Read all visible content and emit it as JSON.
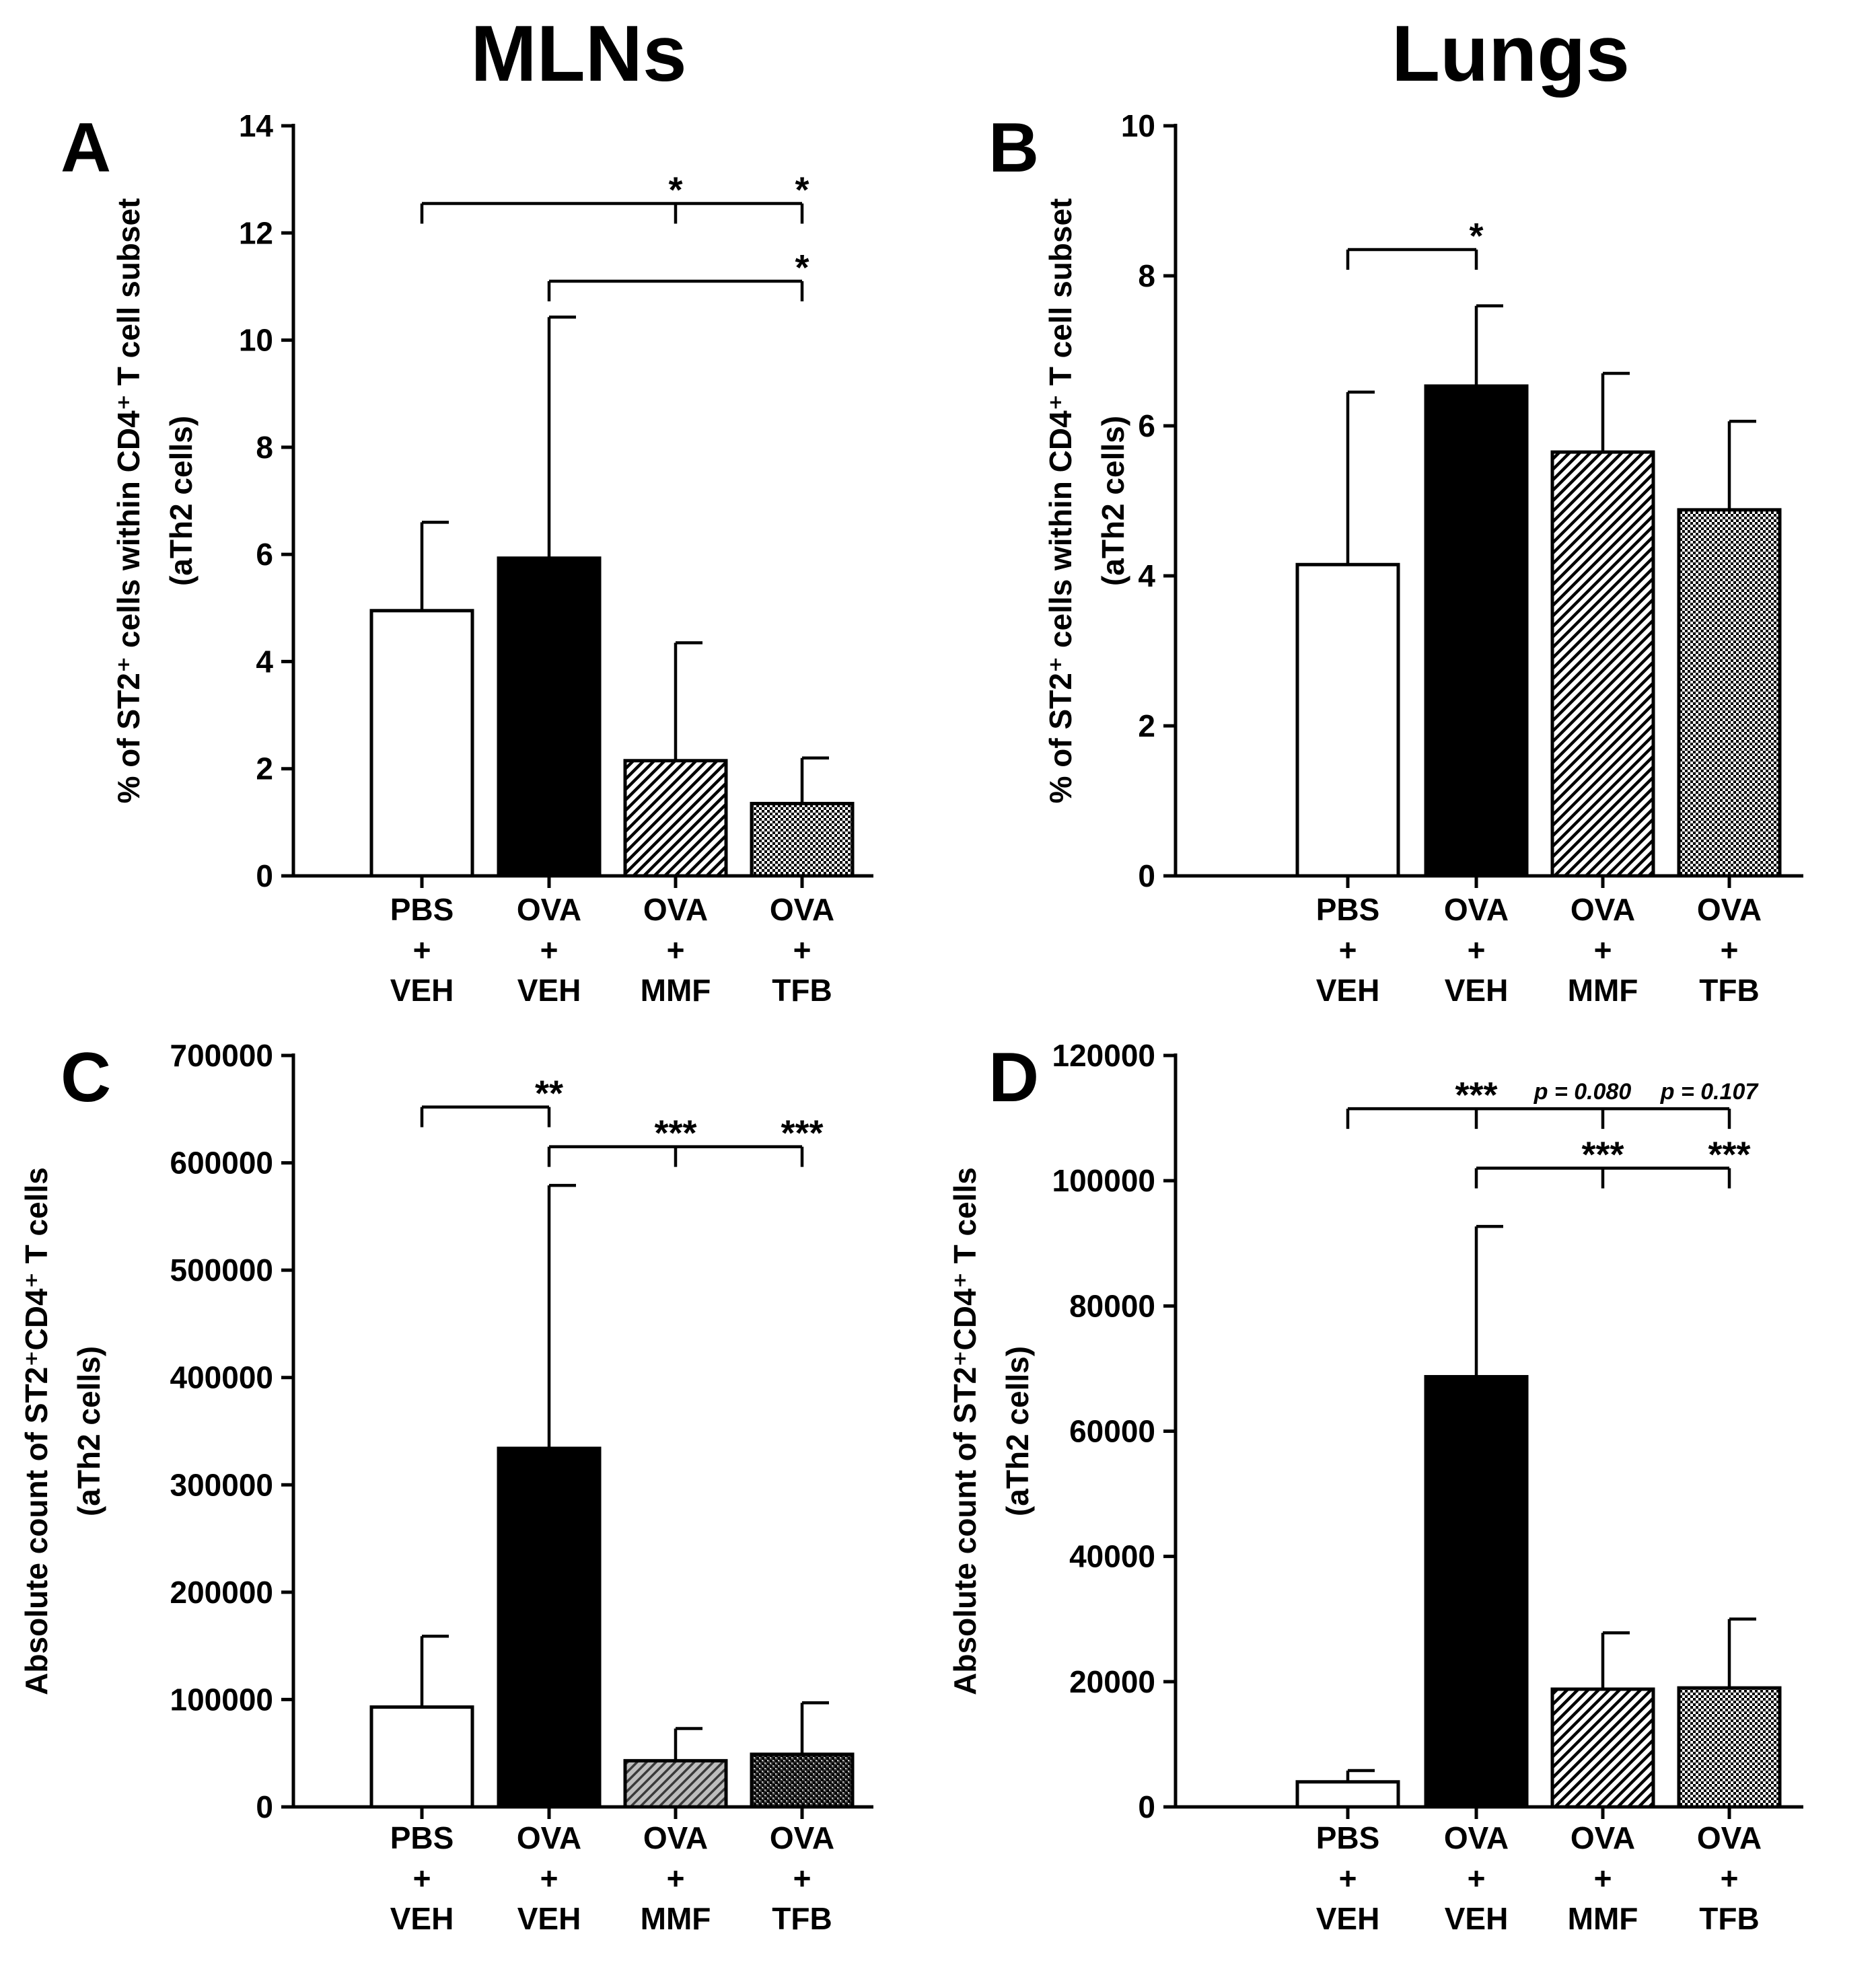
{
  "column_titles": [
    "MLNs",
    "Lungs"
  ],
  "chart_data": [
    {
      "panel": "A",
      "type": "bar",
      "categories": [
        [
          "PBS",
          "+",
          "VEH"
        ],
        [
          "OVA",
          "+",
          "VEH"
        ],
        [
          "OVA",
          "+",
          "MMF"
        ],
        [
          "OVA",
          "+",
          "TFB"
        ]
      ],
      "series": [
        {
          "values": [
            4.95,
            5.93,
            2.15,
            1.35
          ],
          "errors": [
            1.65,
            4.5,
            2.2,
            0.85
          ]
        }
      ],
      "fills": [
        "white",
        "black",
        "hatch",
        "dots"
      ],
      "ylabel": "% of ST2⁺ cells within CD4⁺ T cell subset",
      "ylabel2": "(aTh2 cells)",
      "ylim": [
        0,
        14
      ],
      "yticks": [
        "0",
        "2",
        "4",
        "6",
        "8",
        "10",
        "12",
        "14"
      ],
      "yticks_values": [
        0,
        2,
        4,
        6,
        8,
        10,
        12,
        14
      ],
      "brackets": [
        {
          "from": 0,
          "y": 12.55,
          "drops": [
            {
              "to": 2,
              "label": "*"
            },
            {
              "to": 3,
              "label": "*"
            }
          ]
        },
        {
          "from": 1,
          "y": 11.1,
          "drops": [
            {
              "to": 3,
              "label": "*"
            }
          ]
        }
      ]
    },
    {
      "panel": "B",
      "type": "bar",
      "categories": [
        [
          "PBS",
          "+",
          "VEH"
        ],
        [
          "OVA",
          "+",
          "VEH"
        ],
        [
          "OVA",
          "+",
          "MMF"
        ],
        [
          "OVA",
          "+",
          "TFB"
        ]
      ],
      "series": [
        {
          "values": [
            4.15,
            6.53,
            5.65,
            4.88
          ],
          "errors": [
            2.3,
            1.07,
            1.05,
            1.18
          ]
        }
      ],
      "fills": [
        "white",
        "black",
        "hatch",
        "dots"
      ],
      "ylabel": "% of ST2⁺ cells within CD4⁺ T cell subset",
      "ylabel2": "(aTh2 cells)",
      "ylim": [
        0,
        10
      ],
      "yticks": [
        "0",
        "2",
        "4",
        "6",
        "8",
        "10"
      ],
      "yticks_values": [
        0,
        2,
        4,
        6,
        8,
        10
      ],
      "brackets": [
        {
          "from": 0,
          "y": 8.35,
          "drops": [
            {
              "to": 1,
              "label": "*"
            }
          ]
        }
      ]
    },
    {
      "panel": "C",
      "type": "bar",
      "categories": [
        [
          "PBS",
          "+",
          "VEH"
        ],
        [
          "OVA",
          "+",
          "VEH"
        ],
        [
          "OVA",
          "+",
          "MMF"
        ],
        [
          "OVA",
          "+",
          "TFB"
        ]
      ],
      "series": [
        {
          "values": [
            93000,
            334000,
            43000,
            49000
          ],
          "errors": [
            66000,
            245000,
            30000,
            48000
          ]
        }
      ],
      "fills": [
        "white",
        "black",
        "grayhatch",
        "darkdots"
      ],
      "ylabel": "Absolute count of ST2⁺CD4⁺ T cells",
      "ylabel2": "(aTh2 cells)",
      "ylim": [
        0,
        700000
      ],
      "yticks": [
        "0",
        "100000",
        "200000",
        "300000",
        "400000",
        "500000",
        "600000",
        "700000"
      ],
      "yticks_values": [
        0,
        100000,
        200000,
        300000,
        400000,
        500000,
        600000,
        700000
      ],
      "brackets": [
        {
          "from": 0,
          "y": 652000,
          "drops": [
            {
              "to": 1,
              "label": "**"
            }
          ]
        },
        {
          "from": 1,
          "y": 615000,
          "drops": [
            {
              "to": 2,
              "label": "***"
            },
            {
              "to": 3,
              "label": "***"
            }
          ]
        }
      ]
    },
    {
      "panel": "D",
      "type": "bar",
      "categories": [
        [
          "PBS",
          "+",
          "VEH"
        ],
        [
          "OVA",
          "+",
          "VEH"
        ],
        [
          "OVA",
          "+",
          "MMF"
        ],
        [
          "OVA",
          "+",
          "TFB"
        ]
      ],
      "series": [
        {
          "values": [
            4000,
            68700,
            18800,
            19000
          ],
          "errors": [
            1800,
            24000,
            9000,
            11000
          ]
        }
      ],
      "fills": [
        "white",
        "black",
        "hatch",
        "dots"
      ],
      "ylabel": "Absolute count of ST2⁺CD4⁺ T cells",
      "ylabel2": "(aTh2 cells)",
      "ylim": [
        0,
        120000
      ],
      "yticks": [
        "0",
        "20000",
        "40000",
        "60000",
        "80000",
        "100000",
        "120000"
      ],
      "yticks_values": [
        0,
        20000,
        40000,
        60000,
        80000,
        100000,
        120000
      ],
      "brackets": [
        {
          "from": 0,
          "y": 111500,
          "drops": [
            {
              "to": 1,
              "label": "***"
            },
            {
              "to": 2,
              "label": "p = 0.080",
              "ptext": true
            },
            {
              "to": 3,
              "label": "p = 0.107",
              "ptext": true
            }
          ]
        },
        {
          "from": 1,
          "y": 102000,
          "drops": [
            {
              "to": 2,
              "label": "***"
            },
            {
              "to": 3,
              "label": "***"
            }
          ]
        }
      ]
    }
  ]
}
